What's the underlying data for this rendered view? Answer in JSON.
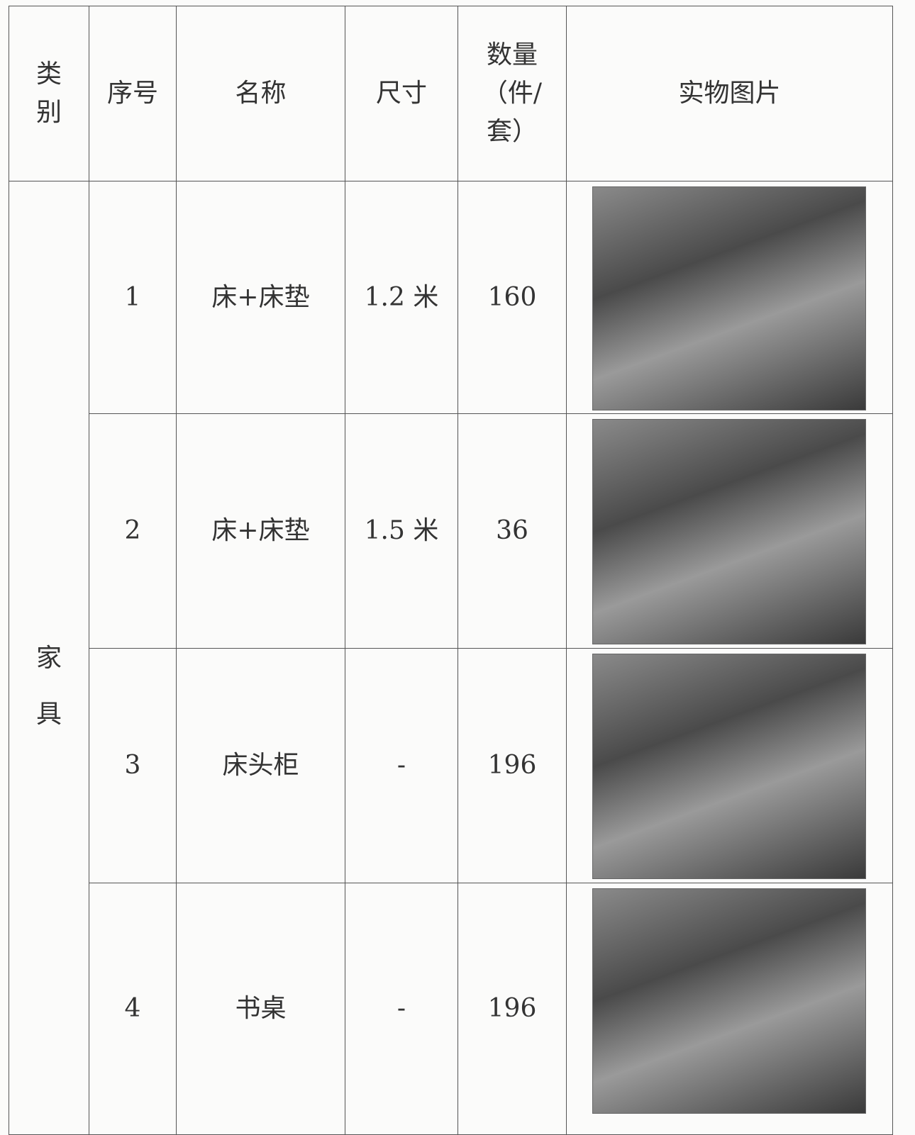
{
  "table": {
    "header": [
      "类别",
      "序号",
      "名称",
      "尺寸",
      "数量（件/套）",
      "实物图片"
    ],
    "category": "家具",
    "rows": [
      [
        "1",
        "床+床垫",
        "1.2 米",
        "160"
      ],
      [
        "2",
        "床+床垫",
        "1.5 米",
        "36"
      ],
      [
        "3",
        "床头柜",
        "-",
        "196"
      ],
      [
        "4",
        "书桌",
        "-",
        "196"
      ]
    ]
  }
}
